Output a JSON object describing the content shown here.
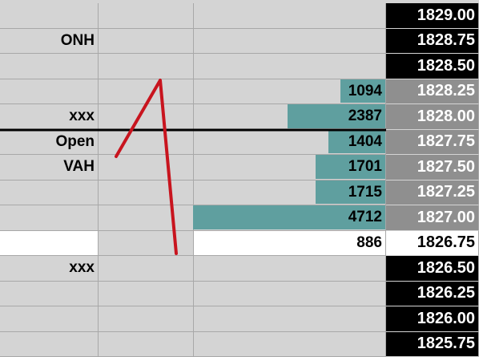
{
  "ladder": {
    "bar_color": "#5f9f9f",
    "bar_max": 4712,
    "rows": [
      {
        "label": null,
        "volume": null,
        "price": "1829.00",
        "style": "dark"
      },
      {
        "label": "ONH",
        "volume": null,
        "price": "1828.75",
        "style": "dark"
      },
      {
        "label": null,
        "volume": null,
        "price": "1828.50",
        "style": "dark"
      },
      {
        "label": null,
        "volume": 1094,
        "price": "1828.25",
        "style": "shaded"
      },
      {
        "label": "xxx",
        "volume": 2387,
        "price": "1828.00",
        "style": "shaded"
      },
      {
        "label": "Open",
        "volume": 1404,
        "price": "1827.75",
        "style": "shaded"
      },
      {
        "label": "VAH",
        "volume": 1701,
        "price": "1827.50",
        "style": "shaded"
      },
      {
        "label": null,
        "volume": 1715,
        "price": "1827.25",
        "style": "shaded"
      },
      {
        "label": null,
        "volume": 4712,
        "price": "1827.00",
        "style": "shaded"
      },
      {
        "label": null,
        "volume": 886,
        "price": "1826.75",
        "style": "selected"
      },
      {
        "label": "xxx",
        "volume": null,
        "price": "1826.50",
        "style": "dark"
      },
      {
        "label": null,
        "volume": null,
        "price": "1826.25",
        "style": "dark"
      },
      {
        "label": null,
        "volume": null,
        "price": "1826.00",
        "style": "dark"
      },
      {
        "label": null,
        "volume": null,
        "price": "1825.75",
        "style": "dark"
      }
    ]
  }
}
